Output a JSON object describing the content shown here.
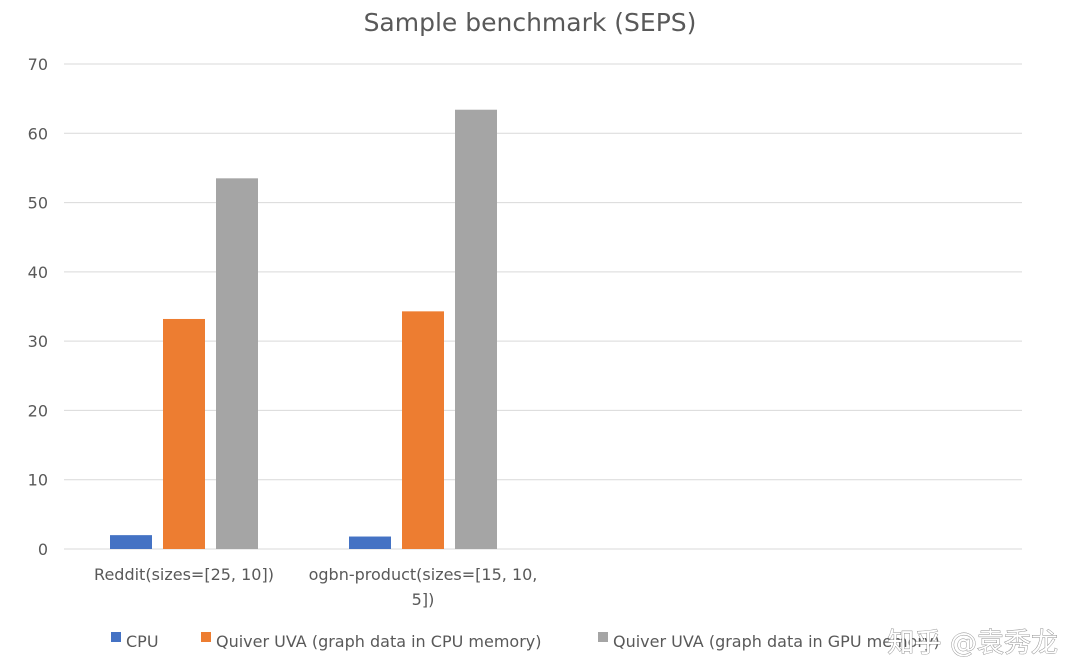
{
  "chart_data": {
    "type": "bar",
    "title": "Sample benchmark (SEPS)",
    "xlabel": "",
    "ylabel": "",
    "ylim": [
      0,
      70
    ],
    "yticks": [
      0,
      10,
      20,
      30,
      40,
      50,
      60,
      70
    ],
    "grid": true,
    "legend_position": "bottom",
    "categories": [
      [
        "Reddit(sizes=[25, 10])"
      ],
      [
        "ogbn-product(sizes=[15, 10,",
        "5])"
      ]
    ],
    "series": [
      {
        "name": "CPU",
        "color": "#4472C4",
        "values": [
          2.0,
          1.8
        ]
      },
      {
        "name": "Quiver UVA (graph data in CPU memory)",
        "color": "#ED7D31",
        "values": [
          33.2,
          34.3
        ]
      },
      {
        "name": "Quiver UVA (graph data in GPU memory)",
        "color": "#A5A5A5",
        "values": [
          53.5,
          63.4
        ]
      }
    ]
  },
  "watermark": {
    "text": "知乎 @袁秀龙",
    "icon": "zhihu-logo"
  }
}
